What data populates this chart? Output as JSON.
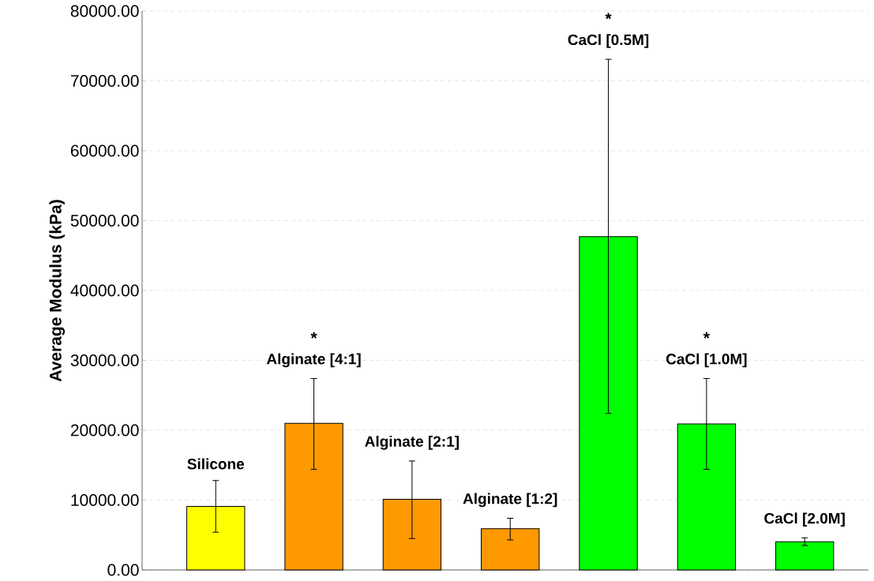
{
  "chart_data": {
    "type": "bar",
    "ylabel": "Average Modulus (kPa)",
    "categories": [
      "Silicone",
      "Alginate [4:1]",
      "Alginate [2:1]",
      "Alginate [1:2]",
      "CaCl [0.5M]",
      "CaCl [1.0M]",
      "CaCl [2.0M]"
    ],
    "values": [
      9100,
      21000,
      10100,
      5900,
      47700,
      20900,
      4050
    ],
    "colors": [
      "#ffff00",
      "#ff9900",
      "#ff9900",
      "#ff9900",
      "#00ff00",
      "#00ff00",
      "#00ff00"
    ],
    "errors": [
      [
        5400,
        12800
      ],
      [
        14400,
        27400
      ],
      [
        4500,
        15600
      ],
      [
        4300,
        7400
      ],
      [
        22400,
        73100
      ],
      [
        14400,
        27400
      ],
      [
        3500,
        4600
      ]
    ],
    "ylim": [
      0,
      80000
    ],
    "yticks": [
      {
        "value": 0,
        "label": "0.00"
      },
      {
        "value": 10000,
        "label": "10000.00"
      },
      {
        "value": 20000,
        "label": "20000.00"
      },
      {
        "value": 30000,
        "label": "30000.00"
      },
      {
        "value": 40000,
        "label": "40000.00"
      },
      {
        "value": 50000,
        "label": "50000.00"
      },
      {
        "value": 60000,
        "label": "60000.00"
      },
      {
        "value": 70000,
        "label": "70000.00"
      },
      {
        "value": 80000,
        "label": "80000.00"
      }
    ],
    "grid": "y",
    "annotations": [
      "*",
      "*",
      "*"
    ]
  }
}
